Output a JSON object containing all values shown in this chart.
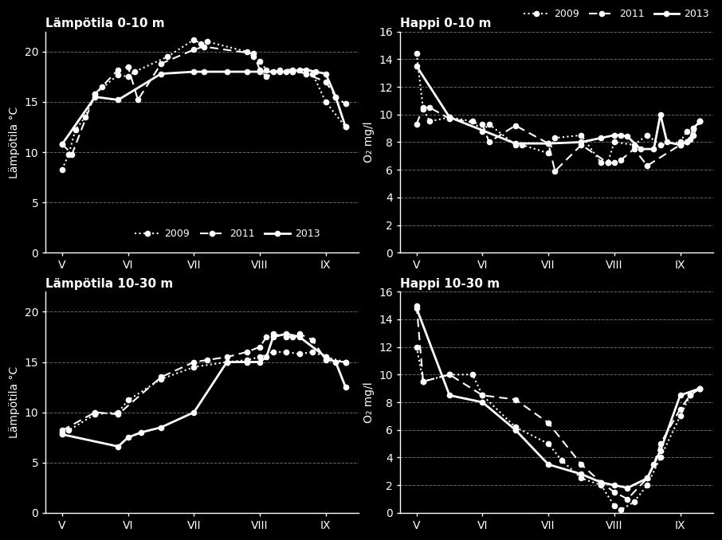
{
  "background_color": "#000000",
  "text_color": "#ffffff",
  "grid_color": "#808080",
  "temp_0_10": {
    "title": "Lämpötila 0-10 m",
    "ylabel": "Lämpötila °C",
    "ylim": [
      0,
      22
    ],
    "yticks": [
      0,
      5,
      10,
      15,
      20
    ],
    "y2009": [
      8.3,
      9.8,
      12.2,
      13.5,
      15.8,
      17.7,
      17.5,
      18.0,
      19.5,
      21.2,
      20.8,
      21.0,
      20.0,
      19.5,
      19.0,
      18.2,
      18.0,
      18.0,
      17.8,
      15.0,
      12.5
    ],
    "x2009": [
      5.0,
      5.1,
      5.2,
      5.35,
      5.5,
      5.85,
      6.0,
      6.1,
      6.6,
      7.0,
      7.1,
      7.2,
      7.8,
      7.9,
      8.0,
      8.1,
      8.3,
      8.5,
      8.8,
      9.0,
      9.3
    ],
    "y2011": [
      10.8,
      9.8,
      15.8,
      16.5,
      18.2,
      18.5,
      15.2,
      18.8,
      20.2,
      20.5,
      19.8,
      18.2,
      17.5,
      18.2,
      18.2,
      17.8,
      17.0,
      15.5,
      14.8
    ],
    "x2011": [
      5.0,
      5.15,
      5.5,
      5.6,
      5.85,
      6.0,
      6.15,
      6.5,
      7.0,
      7.15,
      7.9,
      8.0,
      8.1,
      8.3,
      8.5,
      8.7,
      9.0,
      9.15,
      9.3
    ],
    "y2013": [
      10.8,
      15.5,
      15.2,
      17.8,
      18.0,
      18.0,
      18.0,
      18.0,
      18.0,
      18.0,
      18.0,
      18.0,
      18.2,
      18.2,
      18.0,
      17.8,
      15.5,
      12.5
    ],
    "x2013": [
      5.0,
      5.5,
      5.85,
      6.5,
      7.0,
      7.15,
      7.5,
      7.8,
      8.0,
      8.2,
      8.4,
      8.5,
      8.6,
      8.7,
      8.85,
      9.0,
      9.15,
      9.3
    ],
    "legend_inside": true
  },
  "oxy_0_10": {
    "title": "Happi 0-10 m",
    "ylabel": "O₂ mg/l",
    "ylim": [
      0,
      16
    ],
    "yticks": [
      0,
      2,
      4,
      6,
      8,
      10,
      12,
      14,
      16
    ],
    "y2009": [
      14.4,
      10.4,
      9.5,
      9.8,
      9.5,
      8.8,
      9.3,
      7.8,
      7.8,
      7.2,
      8.3,
      8.5,
      6.5,
      6.5,
      8.0,
      7.8,
      8.5,
      7.8,
      8.0,
      8.8,
      9.0,
      9.5
    ],
    "x2009": [
      5.0,
      5.1,
      5.2,
      5.5,
      5.85,
      6.0,
      6.1,
      6.5,
      6.6,
      7.0,
      7.1,
      7.5,
      7.8,
      7.9,
      8.0,
      8.3,
      8.5,
      8.7,
      9.0,
      9.1,
      9.2,
      9.3
    ],
    "y2011": [
      9.3,
      10.5,
      10.5,
      9.7,
      9.3,
      8.0,
      9.2,
      7.9,
      5.9,
      7.8,
      6.5,
      6.5,
      6.7,
      7.5,
      6.3,
      7.8,
      8.0,
      8.5,
      9.5
    ],
    "x2011": [
      5.0,
      5.1,
      5.2,
      5.5,
      6.0,
      6.1,
      6.5,
      7.0,
      7.1,
      7.5,
      7.9,
      8.0,
      8.1,
      8.3,
      8.5,
      9.0,
      9.1,
      9.2,
      9.3
    ],
    "y2013": [
      13.5,
      9.8,
      7.9,
      7.9,
      8.0,
      8.3,
      8.5,
      8.5,
      8.4,
      7.5,
      7.5,
      10.0,
      8.0,
      7.8,
      8.0,
      8.2,
      9.0,
      9.5
    ],
    "x2013": [
      5.0,
      5.5,
      6.5,
      7.0,
      7.5,
      7.8,
      8.0,
      8.1,
      8.2,
      8.4,
      8.6,
      8.7,
      8.8,
      9.0,
      9.1,
      9.15,
      9.2,
      9.3
    ],
    "legend_inside": false
  },
  "temp_10_30": {
    "title": "Lämpötila 10-30 m",
    "ylabel": "Lämpötila °C",
    "ylim": [
      0,
      22
    ],
    "yticks": [
      0,
      5,
      10,
      15,
      20
    ],
    "y2009": [
      8.0,
      8.2,
      9.8,
      10.0,
      11.2,
      13.3,
      14.5,
      15.0,
      15.2,
      15.5,
      16.0,
      16.0,
      15.8,
      16.0,
      15.5,
      15.0
    ],
    "x2009": [
      5.0,
      5.1,
      5.5,
      5.85,
      6.0,
      6.5,
      7.0,
      7.5,
      7.8,
      8.0,
      8.2,
      8.4,
      8.6,
      8.8,
      9.0,
      9.3
    ],
    "y2011": [
      8.2,
      10.0,
      9.8,
      13.5,
      15.0,
      15.2,
      15.5,
      16.0,
      16.5,
      17.5,
      17.8,
      17.5,
      17.5,
      17.8,
      17.2,
      15.2,
      15.0
    ],
    "x2011": [
      5.0,
      5.5,
      5.85,
      6.5,
      7.0,
      7.2,
      7.5,
      7.8,
      8.0,
      8.1,
      8.2,
      8.4,
      8.5,
      8.6,
      8.8,
      9.0,
      9.3
    ],
    "y2013": [
      7.8,
      6.6,
      7.5,
      8.0,
      8.5,
      10.0,
      15.0,
      15.0,
      15.0,
      15.5,
      17.5,
      17.8,
      17.5,
      15.5,
      15.0,
      12.5
    ],
    "x2013": [
      5.0,
      5.85,
      6.0,
      6.2,
      6.5,
      7.0,
      7.5,
      7.8,
      8.0,
      8.1,
      8.2,
      8.4,
      8.6,
      9.0,
      9.15,
      9.3
    ],
    "legend_inside": false
  },
  "oxy_10_30": {
    "title": "Happi 10-30 m",
    "ylabel": "O₂ mg/l",
    "ylim": [
      0,
      16
    ],
    "yticks": [
      0,
      2,
      4,
      6,
      8,
      10,
      12,
      14,
      16
    ],
    "y2009": [
      12.0,
      9.5,
      10.0,
      10.0,
      8.5,
      6.2,
      5.0,
      3.8,
      2.5,
      2.0,
      0.5,
      0.2,
      0.8,
      2.0,
      4.0,
      7.0,
      8.5,
      9.0
    ],
    "x2009": [
      5.0,
      5.1,
      5.5,
      5.85,
      6.0,
      6.5,
      7.0,
      7.2,
      7.5,
      7.8,
      8.0,
      8.1,
      8.3,
      8.5,
      8.7,
      9.0,
      9.15,
      9.3
    ],
    "y2011": [
      15.0,
      9.5,
      10.0,
      8.5,
      8.2,
      6.5,
      3.5,
      2.2,
      1.5,
      1.0,
      2.5,
      3.5,
      5.0,
      7.5,
      8.5,
      9.0
    ],
    "x2011": [
      5.0,
      5.1,
      5.5,
      6.0,
      6.5,
      7.0,
      7.5,
      7.8,
      8.0,
      8.2,
      8.5,
      8.6,
      8.7,
      9.0,
      9.15,
      9.3
    ],
    "y2013": [
      14.8,
      8.5,
      8.0,
      6.0,
      3.5,
      2.8,
      2.2,
      2.0,
      1.8,
      2.5,
      4.5,
      8.5,
      9.0
    ],
    "x2013": [
      5.0,
      5.5,
      6.0,
      6.5,
      7.0,
      7.5,
      7.8,
      8.0,
      8.2,
      8.5,
      8.7,
      9.0,
      9.3
    ],
    "legend_inside": false
  },
  "xticks": [
    5,
    6,
    7,
    8,
    9
  ],
  "xticklabels": [
    "V",
    "VI",
    "VII",
    "VIII",
    "IX"
  ],
  "xlim": [
    4.75,
    9.5
  ]
}
